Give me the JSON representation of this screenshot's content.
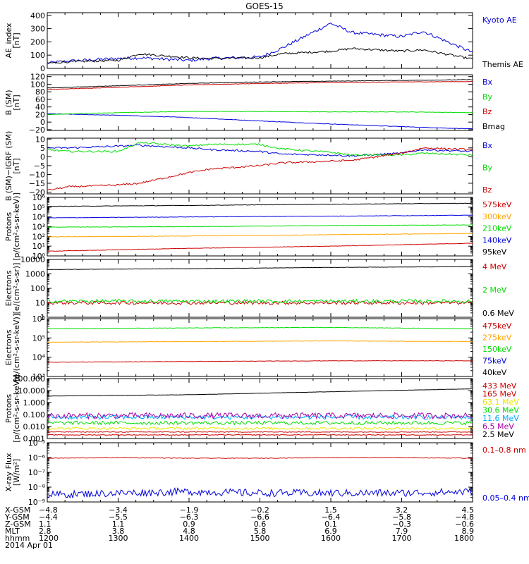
{
  "title": "GOES-15",
  "colors": {
    "black": "#000000",
    "blue": "#0000dd",
    "green": "#00dd00",
    "red": "#cc0000",
    "orange": "#ffa500",
    "yellow": "#e8e800",
    "cyan": "#00aaff",
    "purple": "#aa00aa"
  },
  "chart_data": [
    {
      "type": "line",
      "ylabel": [
        "AE_index",
        "[nT]"
      ],
      "yscale": "linear",
      "ylim": [
        0,
        420
      ],
      "ticks": [
        0,
        100,
        200,
        300,
        400
      ],
      "tick_labels": [
        "0",
        "100",
        "200",
        "300",
        "400"
      ],
      "x": [
        1200,
        1230,
        1300,
        1330,
        1400,
        1430,
        1500,
        1530,
        1600,
        1630,
        1700,
        1730,
        1800
      ],
      "series": [
        {
          "name": "Kyoto AE",
          "color": "blue",
          "noise": 12,
          "values": [
            40,
            55,
            75,
            80,
            60,
            75,
            85,
            150,
            340,
            270,
            240,
            280,
            120
          ]
        },
        {
          "name": "Themis AE",
          "color": "black",
          "noise": 8,
          "values": [
            40,
            50,
            60,
            110,
            80,
            75,
            80,
            110,
            130,
            150,
            130,
            140,
            70
          ]
        }
      ]
    },
    {
      "type": "line",
      "ylabel": [
        "B (SM)",
        "[nT]"
      ],
      "yscale": "linear",
      "ylim": [
        -22,
        125
      ],
      "ticks": [
        -20,
        0,
        20,
        40,
        60,
        80,
        100,
        120
      ],
      "tick_labels": [
        "−20",
        "0",
        "20",
        "40",
        "60",
        "80",
        "100",
        "120"
      ],
      "x": [
        1200,
        1300,
        1400,
        1500,
        1600,
        1700,
        1800
      ],
      "series": [
        {
          "name": "Bx",
          "color": "blue",
          "noise": 0.6,
          "values": [
            22,
            18,
            12,
            3,
            -5,
            -12,
            -18
          ]
        },
        {
          "name": "By",
          "color": "green",
          "noise": 0.6,
          "values": [
            20,
            25,
            28,
            28,
            27,
            27,
            25
          ]
        },
        {
          "name": "Bz",
          "color": "red",
          "noise": 0.6,
          "values": [
            86,
            92,
            98,
            102,
            104,
            106,
            107
          ]
        },
        {
          "name": "Bmag",
          "color": "black",
          "noise": 0.6,
          "values": [
            90,
            96,
            102,
            106,
            108,
            110,
            112
          ]
        }
      ]
    },
    {
      "type": "line",
      "ylabel": [
        "B (SM)−IGRF (SM)",
        "[nT]"
      ],
      "yscale": "linear",
      "ylim": [
        -21,
        10.5
      ],
      "ticks": [
        -20,
        -15,
        -10,
        -5,
        0,
        5,
        10
      ],
      "tick_labels": [
        "−20",
        "−15",
        "−10",
        "−5",
        "0",
        "5",
        "10"
      ],
      "x": [
        1200,
        1230,
        1300,
        1330,
        1400,
        1430,
        1500,
        1530,
        1600,
        1630,
        1700,
        1730,
        1800
      ],
      "series": [
        {
          "name": "Bx",
          "color": "blue",
          "noise": 0.5,
          "values": [
            5,
            5,
            6,
            6.5,
            5,
            4,
            3,
            1.5,
            1,
            0.5,
            2,
            4,
            3
          ]
        },
        {
          "name": "By",
          "color": "green",
          "noise": 0.5,
          "values": [
            4,
            3,
            3,
            8,
            6,
            7,
            7,
            4.5,
            2.5,
            1,
            1,
            2,
            1
          ]
        },
        {
          "name": "Bz",
          "color": "red",
          "noise": 0.5,
          "values": [
            -19,
            -17,
            -16,
            -15,
            -9,
            -7,
            -5,
            -3.5,
            -2.5,
            -2,
            2,
            5,
            4
          ]
        }
      ]
    },
    {
      "type": "line",
      "ylabel": [
        "Protons",
        "[p/(cm²-s-sr-keV)]"
      ],
      "yscale": "log",
      "ylim": [
        1,
        1000000
      ],
      "ticks": [
        1,
        10,
        100,
        1000,
        10000,
        100000,
        1000000
      ],
      "tick_labels": [
        "10⁰",
        "10¹",
        "10²",
        "10³",
        "10⁴",
        "10⁵",
        "10⁶"
      ],
      "x": [
        1200,
        1400,
        1600,
        1800
      ],
      "series": [
        {
          "name": "575keV",
          "color": "red",
          "noise": 0.02,
          "values": [
            3,
            6,
            10,
            20
          ]
        },
        {
          "name": "300keV",
          "color": "orange",
          "noise": 0.02,
          "values": [
            90,
            110,
            150,
            200
          ]
        },
        {
          "name": "210keV",
          "color": "green",
          "noise": 0.02,
          "values": [
            900,
            1000,
            1300,
            1500
          ]
        },
        {
          "name": "140keV",
          "color": "blue",
          "noise": 0.02,
          "values": [
            8000,
            10000,
            12000,
            15000
          ]
        },
        {
          "name": "95keV",
          "color": "black",
          "noise": 0.02,
          "values": [
            120000,
            150000,
            200000,
            250000
          ]
        }
      ]
    },
    {
      "type": "line",
      "ylabel": [
        "Electrons",
        "[e/(cm²-s-sr)]"
      ],
      "yscale": "log",
      "ylim": [
        1,
        10000
      ],
      "ticks": [
        1,
        10,
        100,
        1000,
        10000
      ],
      "tick_labels": [
        "1",
        "10",
        "100",
        "1000",
        "10000"
      ],
      "x": [
        1200,
        1400,
        1600,
        1800
      ],
      "series": [
        {
          "name": "4 MeV",
          "color": "red",
          "noise": 0.12,
          "values": [
            10,
            10,
            10,
            10
          ]
        },
        {
          "name": "2 MeV",
          "color": "green",
          "noise": 0.12,
          "values": [
            13,
            13,
            13,
            13
          ]
        },
        {
          "name": "0.6 MeV",
          "color": "black",
          "noise": 0.01,
          "values": [
            2000,
            2300,
            2800,
            3200
          ]
        }
      ]
    },
    {
      "type": "line",
      "ylabel": [
        "Electrons",
        "[e/(cm²-s-sr-keV)]"
      ],
      "yscale": "log",
      "ylim": [
        1000,
        1000000
      ],
      "ticks": [
        1000,
        10000,
        100000,
        1000000
      ],
      "tick_labels": [
        "10³",
        "10⁴",
        "10⁵",
        "10⁶"
      ],
      "x": [
        1200,
        1400,
        1600,
        1800
      ],
      "series": [
        {
          "name": "475keV",
          "color": "red",
          "noise": 0.01,
          "values": [
            5500,
            6000,
            6500,
            6500
          ]
        },
        {
          "name": "275keV",
          "color": "orange",
          "noise": 0.01,
          "values": [
            60000,
            65000,
            70000,
            65000
          ]
        },
        {
          "name": "150keV",
          "color": "green",
          "noise": 0.01,
          "values": [
            300000,
            330000,
            350000,
            300000
          ]
        },
        {
          "name": "75keV",
          "color": "blue",
          "noise": 0.01,
          "values": [
            null,
            null,
            null,
            null
          ]
        },
        {
          "name": "40keV",
          "color": "black",
          "noise": 0.01,
          "values": [
            null,
            null,
            null,
            null
          ]
        }
      ]
    },
    {
      "type": "line",
      "ylabel": [
        "Protons",
        "[p/(cm²-s-sr-keV)]"
      ],
      "yscale": "log",
      "ylim": [
        0.001,
        100
      ],
      "ticks": [
        0.001,
        0.01,
        0.1,
        1,
        10,
        100
      ],
      "tick_labels": [
        "0.001",
        "0.010",
        "0.100",
        "1.000",
        "10.000",
        "100.000"
      ],
      "x": [
        1200,
        1400,
        1600,
        1800
      ],
      "series": [
        {
          "name": "433 MeV",
          "color": "red",
          "noise": 0.03,
          "values": [
            0.002,
            0.002,
            0.002,
            0.002
          ]
        },
        {
          "name": "165 MeV",
          "color": "red",
          "noise": 0.03,
          "values": [
            0.0035,
            0.0035,
            0.0035,
            0.0035
          ]
        },
        {
          "name": "63.1 MeV",
          "color": "yellow",
          "noise": 0.1,
          "values": [
            0.007,
            0.007,
            0.007,
            0.007
          ]
        },
        {
          "name": "30.6 MeV",
          "color": "green",
          "noise": 0.15,
          "values": [
            0.02,
            0.02,
            0.02,
            0.02
          ]
        },
        {
          "name": "11.6 MeV",
          "color": "cyan",
          "noise": 0.18,
          "values": [
            0.06,
            0.06,
            0.06,
            0.06
          ]
        },
        {
          "name": "6.5 MeV",
          "color": "purple",
          "noise": 0.25,
          "values": [
            0.08,
            0.08,
            0.08,
            0.08
          ]
        },
        {
          "name": "2.5 MeV",
          "color": "black",
          "noise": 0.01,
          "values": [
            3.5,
            4.5,
            8,
            14
          ]
        }
      ]
    },
    {
      "type": "line",
      "ylabel": [
        "X-ray Flux",
        "[W/m²]"
      ],
      "yscale": "log",
      "ylim": [
        1e-09,
        1e-05
      ],
      "ticks": [
        1e-09,
        1e-08,
        1e-07,
        1e-06,
        1e-05
      ],
      "tick_labels": [
        "10⁻⁹",
        "10⁻⁸",
        "10⁻⁷",
        "10⁻⁶",
        "10⁻⁵"
      ],
      "x": [
        1200,
        1300,
        1400,
        1500,
        1600,
        1700,
        1800
      ],
      "series": [
        {
          "name": "0.1–0.8 nm",
          "color": "red",
          "noise": 0.02,
          "values": [
            9e-07,
            1e-06,
            9e-07,
            9e-07,
            1e-06,
            1e-06,
            9e-07
          ]
        },
        {
          "name": "0.05–0.4 nm",
          "color": "blue",
          "noise": 0.25,
          "values": [
            3e-09,
            4e-09,
            5e-09,
            4e-09,
            4e-09,
            4e-09,
            5e-09
          ]
        }
      ]
    }
  ],
  "x_axis": {
    "ticks": [
      1200,
      1300,
      1400,
      1500,
      1600,
      1700,
      1800
    ],
    "rows": [
      {
        "label": "X-GSM",
        "values": [
          "−4.8",
          "−3.4",
          "−1.9",
          "−0.2",
          "1.5",
          "3.2",
          "4.5"
        ]
      },
      {
        "label": "Y-GSM",
        "values": [
          "−4.4",
          "−5.5",
          "−6.3",
          "−6.6",
          "−6.4",
          "−5.8",
          "−4.8"
        ]
      },
      {
        "label": "Z-GSM",
        "values": [
          "1.1",
          "1.1",
          "0.9",
          "0.6",
          "0.1",
          "−0.3",
          "−0.6"
        ]
      },
      {
        "label": "MLT",
        "values": [
          "2.8",
          "3.8",
          "4.8",
          "5.8",
          "6.9",
          "7.9",
          "8.9"
        ]
      },
      {
        "label": "hhmm",
        "values": [
          "1200",
          "1300",
          "1400",
          "1500",
          "1600",
          "1700",
          "1800"
        ]
      }
    ],
    "date": "2014 Apr 01"
  }
}
